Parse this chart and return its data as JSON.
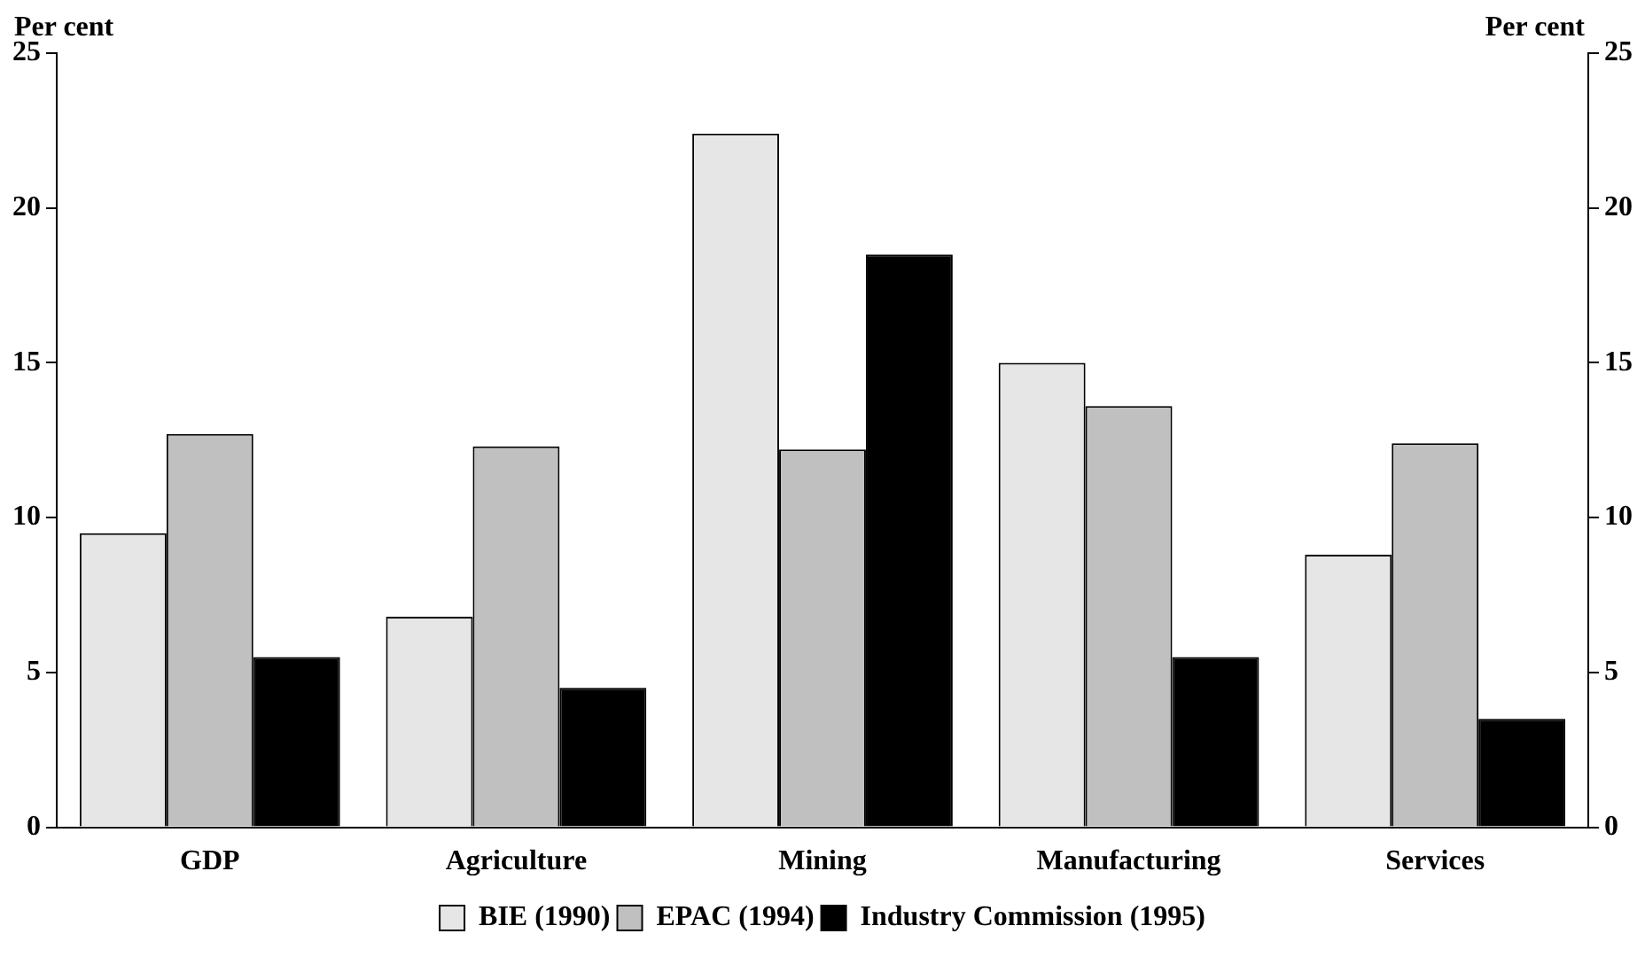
{
  "chart_data": {
    "type": "bar",
    "ylabel": "Per cent",
    "y2label": "Per cent",
    "categories": [
      "GDP",
      "Agriculture",
      "Mining",
      "Manufacturing",
      "Services"
    ],
    "series": [
      {
        "name": "BIE (1990)",
        "color": "#e6e6e6",
        "values": [
          9.5,
          6.8,
          22.4,
          15.0,
          8.8
        ]
      },
      {
        "name": "EPAC (1994)",
        "color": "#c0c0c0",
        "values": [
          12.7,
          12.3,
          12.2,
          13.6,
          12.4
        ]
      },
      {
        "name": "Industry Commission (1995)",
        "color": "#000000",
        "values": [
          5.5,
          4.5,
          18.5,
          5.5,
          3.5
        ]
      }
    ],
    "ylim": [
      0,
      25
    ],
    "yticks": [
      0,
      5,
      10,
      15,
      20,
      25
    ],
    "y2lim": [
      0,
      25
    ],
    "y2ticks": [
      0,
      5,
      10,
      15,
      20,
      25
    ],
    "grid": false,
    "legend": "bottom"
  }
}
